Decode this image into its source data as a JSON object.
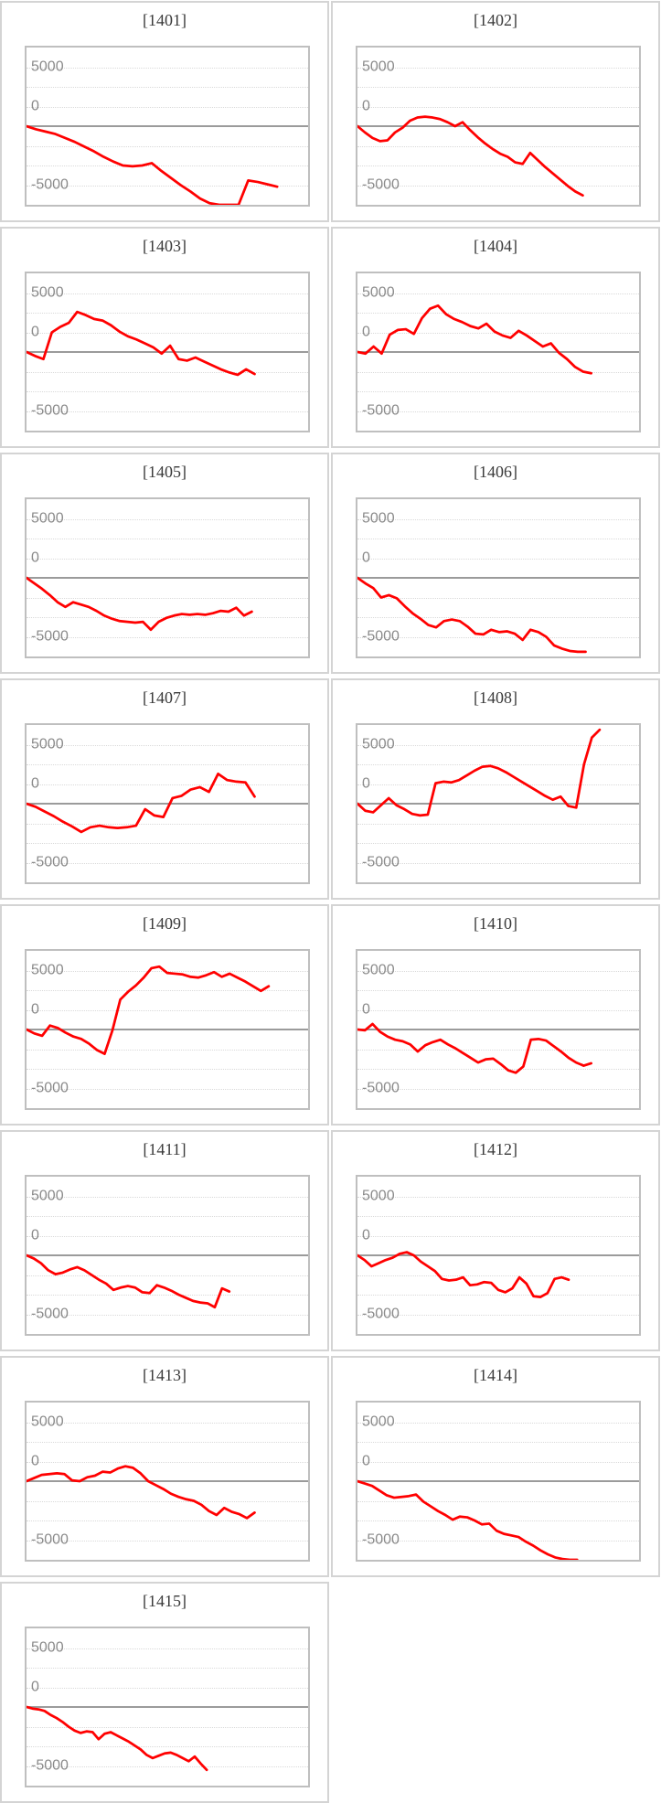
{
  "page_title": "",
  "axis": {
    "ytick_labels": [
      "5000",
      "0",
      "-5000"
    ],
    "ytick_positions_pct": [
      12.5,
      37.5,
      87.5
    ]
  },
  "colors": {
    "line": "#ff0000",
    "zero_axis": "#9b9b9b",
    "gridline": "#d9d9d9",
    "plot_border": "#bfbfbf",
    "card_border": "#d4d4d4",
    "tick_label": "#8a8a8a",
    "title": "#3a3a3a"
  },
  "chart_data": {
    "type": "line",
    "ylabel": "",
    "xlabel": "",
    "ylim": [
      -5000,
      5000
    ],
    "yticks": [
      5000,
      0,
      -5000
    ],
    "grid": "dotted-horizontal",
    "legend": "none",
    "note": "15 small multiples; red cumulative win/loss line starting at 0 on the dark zero axis; x axis unlabeled (game count), end_fraction = how far across the plot the series ends",
    "charts": [
      {
        "title": "[1401]",
        "end_fraction": 0.89,
        "values": [
          0,
          -200,
          -350,
          -500,
          -750,
          -1000,
          -1300,
          -1600,
          -1950,
          -2250,
          -2500,
          -2550,
          -2500,
          -2350,
          -2850,
          -3300,
          -3750,
          -4150,
          -4600,
          -4900,
          -5000,
          -5000,
          -5000,
          -3450,
          -3550,
          -3700,
          -3850
        ]
      },
      {
        "title": "[1402]",
        "end_fraction": 0.8,
        "values": [
          0,
          -400,
          -750,
          -950,
          -900,
          -400,
          -100,
          350,
          550,
          600,
          550,
          450,
          250,
          0,
          250,
          -250,
          -700,
          -1100,
          -1450,
          -1750,
          -1950,
          -2300,
          -2400,
          -1700,
          -2150,
          -2600,
          -3000,
          -3400,
          -3800,
          -4150,
          -4400
        ]
      },
      {
        "title": "[1403]",
        "end_fraction": 0.81,
        "values": [
          0,
          -250,
          -450,
          1250,
          1600,
          1850,
          2550,
          2350,
          2100,
          2000,
          1700,
          1300,
          1000,
          800,
          550,
          300,
          -100,
          400,
          -450,
          -550,
          -350,
          -600,
          -850,
          -1100,
          -1300,
          -1450,
          -1100,
          -1400
        ]
      },
      {
        "title": "[1404]",
        "end_fraction": 0.83,
        "values": [
          0,
          -100,
          350,
          -100,
          1100,
          1400,
          1450,
          1150,
          2150,
          2750,
          2950,
          2400,
          2100,
          1900,
          1650,
          1500,
          1800,
          1300,
          1050,
          900,
          1350,
          1050,
          700,
          350,
          550,
          -50,
          -450,
          -950,
          -1250,
          -1350
        ]
      },
      {
        "title": "[1405]",
        "end_fraction": 0.8,
        "values": [
          0,
          -350,
          -700,
          -1100,
          -1550,
          -1850,
          -1550,
          -1700,
          -1850,
          -2100,
          -2400,
          -2600,
          -2750,
          -2800,
          -2850,
          -2800,
          -3300,
          -2800,
          -2550,
          -2400,
          -2300,
          -2350,
          -2300,
          -2350,
          -2250,
          -2100,
          -2150,
          -1900,
          -2400,
          -2150
        ]
      },
      {
        "title": "[1406]",
        "end_fraction": 0.81,
        "values": [
          0,
          -350,
          -650,
          -1250,
          -1100,
          -1300,
          -1800,
          -2250,
          -2600,
          -3000,
          -3150,
          -2750,
          -2650,
          -2750,
          -3100,
          -3550,
          -3600,
          -3300,
          -3450,
          -3400,
          -3550,
          -3950,
          -3300,
          -3450,
          -3750,
          -4300,
          -4500,
          -4650,
          -4700,
          -4700
        ]
      },
      {
        "title": "[1407]",
        "end_fraction": 0.81,
        "values": [
          0,
          -200,
          -500,
          -800,
          -1150,
          -1450,
          -1800,
          -1500,
          -1400,
          -1500,
          -1550,
          -1500,
          -1400,
          -350,
          -750,
          -850,
          350,
          500,
          900,
          1050,
          750,
          1900,
          1500,
          1400,
          1350,
          450
        ]
      },
      {
        "title": "[1408]",
        "end_fraction": 0.86,
        "values": [
          0,
          -450,
          -550,
          -100,
          350,
          -100,
          -350,
          -650,
          -750,
          -700,
          1300,
          1400,
          1350,
          1500,
          1800,
          2100,
          2350,
          2400,
          2250,
          2000,
          1700,
          1400,
          1100,
          800,
          500,
          250,
          450,
          -150,
          -250,
          2500,
          4200,
          4700
        ]
      },
      {
        "title": "[1409]",
        "end_fraction": 0.86,
        "values": [
          0,
          -250,
          -400,
          250,
          100,
          -200,
          -450,
          -600,
          -900,
          -1300,
          -1550,
          -50,
          1900,
          2400,
          2800,
          3300,
          3900,
          4000,
          3600,
          3550,
          3500,
          3350,
          3300,
          3450,
          3650,
          3350,
          3550,
          3300,
          3050,
          2750,
          2450,
          2750
        ]
      },
      {
        "title": "[1410]",
        "end_fraction": 0.83,
        "values": [
          0,
          -50,
          350,
          -150,
          -450,
          -650,
          -750,
          -950,
          -1400,
          -1000,
          -800,
          -650,
          -950,
          -1200,
          -1500,
          -1800,
          -2100,
          -1900,
          -1850,
          -2200,
          -2600,
          -2750,
          -2350,
          -650,
          -600,
          -700,
          -1050,
          -1400,
          -1800,
          -2100,
          -2300,
          -2150
        ]
      },
      {
        "title": "[1411]",
        "end_fraction": 0.72,
        "values": [
          0,
          -200,
          -500,
          -950,
          -1200,
          -1100,
          -900,
          -750,
          -950,
          -1250,
          -1550,
          -1800,
          -2200,
          -2050,
          -1950,
          -2050,
          -2350,
          -2400,
          -1900,
          -2050,
          -2250,
          -2500,
          -2700,
          -2900,
          -3000,
          -3050,
          -3300,
          -2100,
          -2300
        ]
      },
      {
        "title": "[1412]",
        "end_fraction": 0.75,
        "values": [
          0,
          -300,
          -700,
          -500,
          -300,
          -150,
          100,
          200,
          0,
          -400,
          -700,
          -1000,
          -1500,
          -1600,
          -1550,
          -1400,
          -1900,
          -1850,
          -1700,
          -1750,
          -2200,
          -2350,
          -2100,
          -1400,
          -1800,
          -2600,
          -2650,
          -2400,
          -1500,
          -1400,
          -1550
        ]
      },
      {
        "title": "[1413]",
        "end_fraction": 0.81,
        "values": [
          0,
          200,
          400,
          450,
          500,
          450,
          50,
          0,
          250,
          350,
          600,
          550,
          800,
          950,
          850,
          500,
          0,
          -250,
          -500,
          -800,
          -1000,
          -1150,
          -1250,
          -1500,
          -1900,
          -2150,
          -1700,
          -1950,
          -2100,
          -2350,
          -2000
        ]
      },
      {
        "title": "[1414]",
        "end_fraction": 0.78,
        "values": [
          0,
          -150,
          -300,
          -600,
          -900,
          -1050,
          -1000,
          -950,
          -850,
          -1300,
          -1600,
          -1900,
          -2150,
          -2450,
          -2250,
          -2300,
          -2500,
          -2750,
          -2700,
          -3150,
          -3350,
          -3450,
          -3550,
          -3850,
          -4100,
          -4400,
          -4650,
          -4850,
          -4950,
          -5000,
          -5000
        ]
      },
      {
        "title": "[1415]",
        "end_fraction": 0.64,
        "values": [
          0,
          -100,
          -150,
          -250,
          -500,
          -700,
          -950,
          -1250,
          -1500,
          -1650,
          -1550,
          -1600,
          -2050,
          -1700,
          -1600,
          -1800,
          -2000,
          -2200,
          -2450,
          -2700,
          -3050,
          -3250,
          -3100,
          -2950,
          -2900,
          -3050,
          -3250,
          -3450,
          -3150,
          -3600,
          -4000
        ]
      }
    ]
  }
}
